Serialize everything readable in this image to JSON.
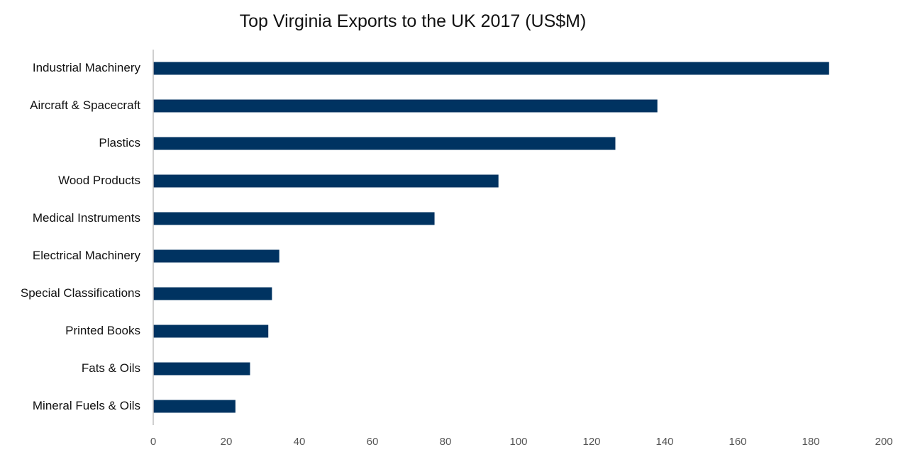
{
  "chart_data": {
    "type": "bar",
    "orientation": "horizontal",
    "title": "Top Virginia Exports to the UK  2017  (US$M)",
    "xlabel": "",
    "ylabel": "",
    "categories": [
      "Industrial Machinery",
      "Aircraft & Spacecraft",
      "Plastics",
      "Wood Products",
      "Medical Instruments",
      "Electrical Machinery",
      "Special Classifications",
      "Printed Books",
      "Fats & Oils",
      "Mineral Fuels & Oils"
    ],
    "values": [
      185,
      138,
      126.5,
      94.5,
      77,
      34.5,
      32.5,
      31.5,
      26.5,
      22.5
    ],
    "xlim": [
      0,
      200
    ],
    "ticks": [
      0,
      20,
      40,
      60,
      80,
      100,
      120,
      140,
      160,
      180,
      200
    ],
    "tick_labels": [
      "0",
      "20",
      "40",
      "60",
      "80",
      "100",
      "120",
      "140",
      "160",
      "180",
      "200"
    ],
    "bar_color": "#003361",
    "axis_color": "#bfbfbf",
    "grid": false,
    "legend": "none"
  }
}
